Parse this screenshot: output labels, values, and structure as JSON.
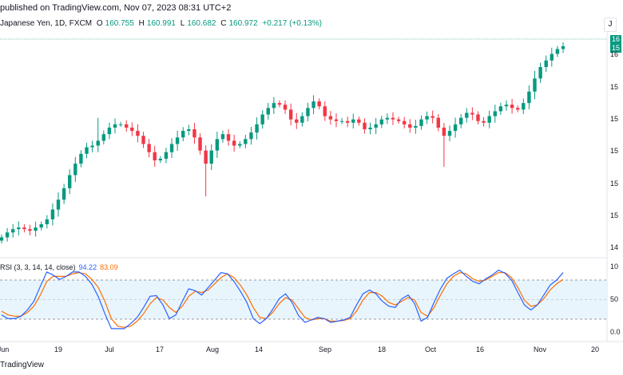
{
  "header": {
    "text": "published on TradingView.com, Nov 07, 2023 08:31 UTC+2"
  },
  "symbol": {
    "name": "Japanese Yen, 1D, FXCM",
    "open_label": "O",
    "open": "160.755",
    "high_label": "H",
    "high": "160.991",
    "low_label": "L",
    "low": "160.682",
    "close_label": "C",
    "close": "160.972",
    "change": "+0.217 (+0.13%)"
  },
  "top_right_button": "J",
  "price_axis": {
    "badge_top": "16",
    "badge_bottom": "15",
    "ticks": [
      "16",
      "15",
      "15",
      "15",
      "15",
      "15",
      "14"
    ]
  },
  "rsi": {
    "title": "RSI (3, 3, 14, 14, close)",
    "k": "94.22",
    "d": "83.09",
    "axis": [
      "10",
      "50",
      "0.0"
    ]
  },
  "time_axis": [
    "Jun",
    "19",
    "Jul",
    "17",
    "Aug",
    "14",
    "Sep",
    "18",
    "Oct",
    "16",
    "Nov",
    "20"
  ],
  "footer": "TradingView",
  "colors": {
    "up": "#089981",
    "down": "#f23645",
    "k_line": "#2962ff",
    "d_line": "#ff6d00",
    "band": "#e3f2fd"
  },
  "chart_data": {
    "type": "candlestick",
    "closes": [
      149.3,
      149.6,
      149.8,
      149.9,
      149.8,
      149.7,
      149.9,
      150.1,
      150.4,
      151.0,
      151.6,
      152.3,
      153.1,
      153.8,
      154.4,
      154.8,
      154.9,
      155.2,
      155.6,
      156.0,
      156.2,
      156.2,
      156.0,
      155.8,
      155.5,
      155.0,
      154.5,
      154.0,
      154.1,
      154.5,
      155.0,
      155.4,
      155.8,
      155.9,
      155.4,
      154.6,
      153.8,
      154.6,
      155.3,
      155.6,
      155.2,
      154.9,
      155.0,
      155.3,
      155.7,
      156.2,
      156.8,
      157.2,
      157.5,
      157.4,
      157.1,
      156.5,
      156.3,
      156.7,
      157.2,
      157.6,
      157.3,
      156.7,
      156.5,
      156.4,
      156.4,
      156.3,
      156.5,
      156.3,
      155.9,
      156.0,
      156.2,
      156.5,
      156.6,
      156.5,
      156.4,
      156.2,
      156.0,
      156.1,
      156.5,
      156.7,
      156.6,
      156.0,
      155.5,
      155.8,
      156.2,
      156.6,
      156.9,
      156.8,
      156.4,
      156.3,
      156.7,
      157.0,
      157.3,
      157.4,
      157.2,
      157.1,
      157.5,
      158.2,
      159.0,
      159.7,
      160.1,
      160.5,
      160.8,
      160.97
    ],
    "rsi_k": [
      26,
      20,
      20,
      24,
      34,
      48,
      72,
      95,
      90,
      83,
      88,
      95,
      95,
      88,
      75,
      55,
      28,
      4,
      4,
      4,
      12,
      22,
      38,
      56,
      57,
      42,
      20,
      26,
      48,
      68,
      65,
      58,
      70,
      82,
      94,
      92,
      80,
      64,
      46,
      20,
      12,
      20,
      35,
      52,
      60,
      46,
      25,
      14,
      18,
      22,
      20,
      14,
      16,
      18,
      22,
      42,
      60,
      66,
      60,
      48,
      40,
      38,
      52,
      58,
      44,
      16,
      22,
      46,
      68,
      85,
      92,
      98,
      88,
      80,
      76,
      84,
      90,
      98,
      93,
      82,
      62,
      42,
      34,
      42,
      58,
      74,
      82,
      94
    ],
    "rsi_d": [
      32,
      26,
      24,
      24,
      30,
      40,
      58,
      80,
      88,
      88,
      88,
      92,
      94,
      92,
      83,
      70,
      48,
      20,
      8,
      6,
      8,
      16,
      28,
      44,
      54,
      50,
      38,
      30,
      40,
      56,
      64,
      62,
      66,
      76,
      86,
      92,
      86,
      74,
      58,
      38,
      22,
      20,
      30,
      44,
      54,
      50,
      36,
      22,
      18,
      20,
      20,
      16,
      16,
      17,
      20,
      32,
      50,
      62,
      62,
      56,
      46,
      42,
      48,
      54,
      50,
      30,
      24,
      38,
      58,
      76,
      88,
      94,
      92,
      84,
      80,
      82,
      88,
      94,
      94,
      86,
      70,
      50,
      40,
      42,
      52,
      66,
      76,
      83
    ]
  }
}
